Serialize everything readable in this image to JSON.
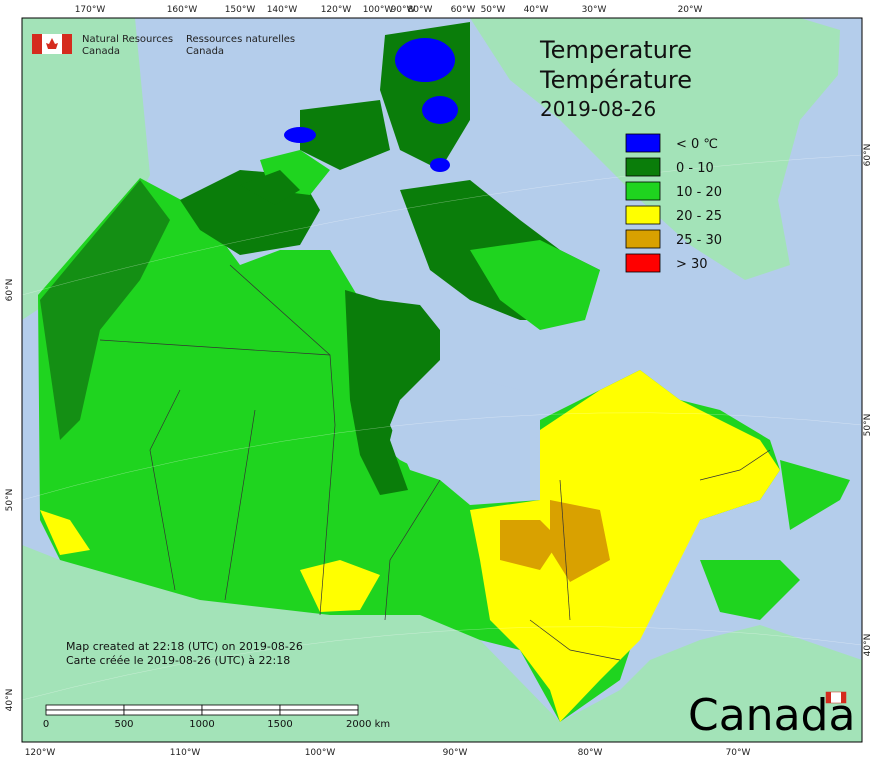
{
  "header": {
    "org_en_1": "Natural Resources",
    "org_en_2": "Canada",
    "org_fr_1": "Ressources naturelles",
    "org_fr_2": "Canada"
  },
  "title": {
    "line1": "Temperature",
    "line2": "Température",
    "date": "2019-08-26"
  },
  "legend": [
    {
      "label": "< 0 ℃",
      "color": "#0000ff"
    },
    {
      "label": "0 - 10",
      "color": "#0a7d0a"
    },
    {
      "label": "10 - 20",
      "color": "#1fd41f"
    },
    {
      "label": "20 - 25",
      "color": "#ffff00"
    },
    {
      "label": "25 - 30",
      "color": "#d9a100"
    },
    {
      "label": "> 30",
      "color": "#ff0000"
    }
  ],
  "graticule": {
    "top": [
      "170°W",
      "160°W",
      "150°W",
      "140°W",
      "120°W",
      "100°W",
      "90°W",
      "80°W",
      "60°W",
      "50°W",
      "40°W",
      "30°W",
      "20°W"
    ],
    "bottom": [
      "120°W",
      "110°W",
      "100°W",
      "90°W",
      "80°W",
      "70°W"
    ],
    "left": [
      "60°N",
      "50°N",
      "40°N"
    ],
    "right": [
      "60°N",
      "50°N",
      "40°N"
    ]
  },
  "notes": {
    "en": "Map created at 22:18 (UTC) on 2019-08-26",
    "fr": "Carte créée le 2019-08-26 (UTC) à 22:18"
  },
  "scale": [
    "0",
    "500",
    "1000",
    "1500",
    "2000 km"
  ],
  "wordmark": "Canada"
}
